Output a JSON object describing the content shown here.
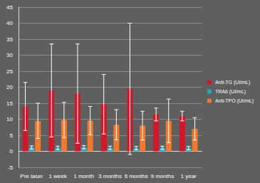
{
  "chart_data": {
    "type": "bar",
    "categories": [
      "Pre laser",
      "1 week",
      "1 month",
      "3 months",
      "6 months",
      "9 months",
      "1 year"
    ],
    "series": [
      {
        "name": "Anti-TG (UI/mL)",
        "color": "#d3172b",
        "values": [
          14,
          19,
          18,
          14.7,
          19.5,
          11.5,
          11
        ],
        "errors": [
          7.5,
          14.5,
          15.5,
          9.3,
          20.5,
          2,
          1.5
        ]
      },
      {
        "name": "TRAb (UI/mL)",
        "color": "#2aa6bb",
        "values": [
          1.2,
          1.1,
          1.3,
          1.1,
          1.0,
          1.1,
          1.0
        ],
        "errors": [
          0.5,
          0.5,
          0.5,
          0.5,
          0.5,
          0.5,
          0.5
        ]
      },
      {
        "name": "Anti-TPO (UI/mL)",
        "color": "#f0782f",
        "values": [
          9.5,
          9.8,
          9.6,
          8.3,
          8,
          9.5,
          7
        ],
        "errors": [
          5.5,
          5.5,
          4.4,
          4.7,
          4.5,
          6.8,
          3.5
        ]
      }
    ],
    "ylim": [
      -5,
      45
    ],
    "yticks": [
      -5,
      0,
      5,
      10,
      15,
      20,
      25,
      30,
      35,
      40,
      45
    ],
    "grid": true,
    "legend": "right"
  }
}
